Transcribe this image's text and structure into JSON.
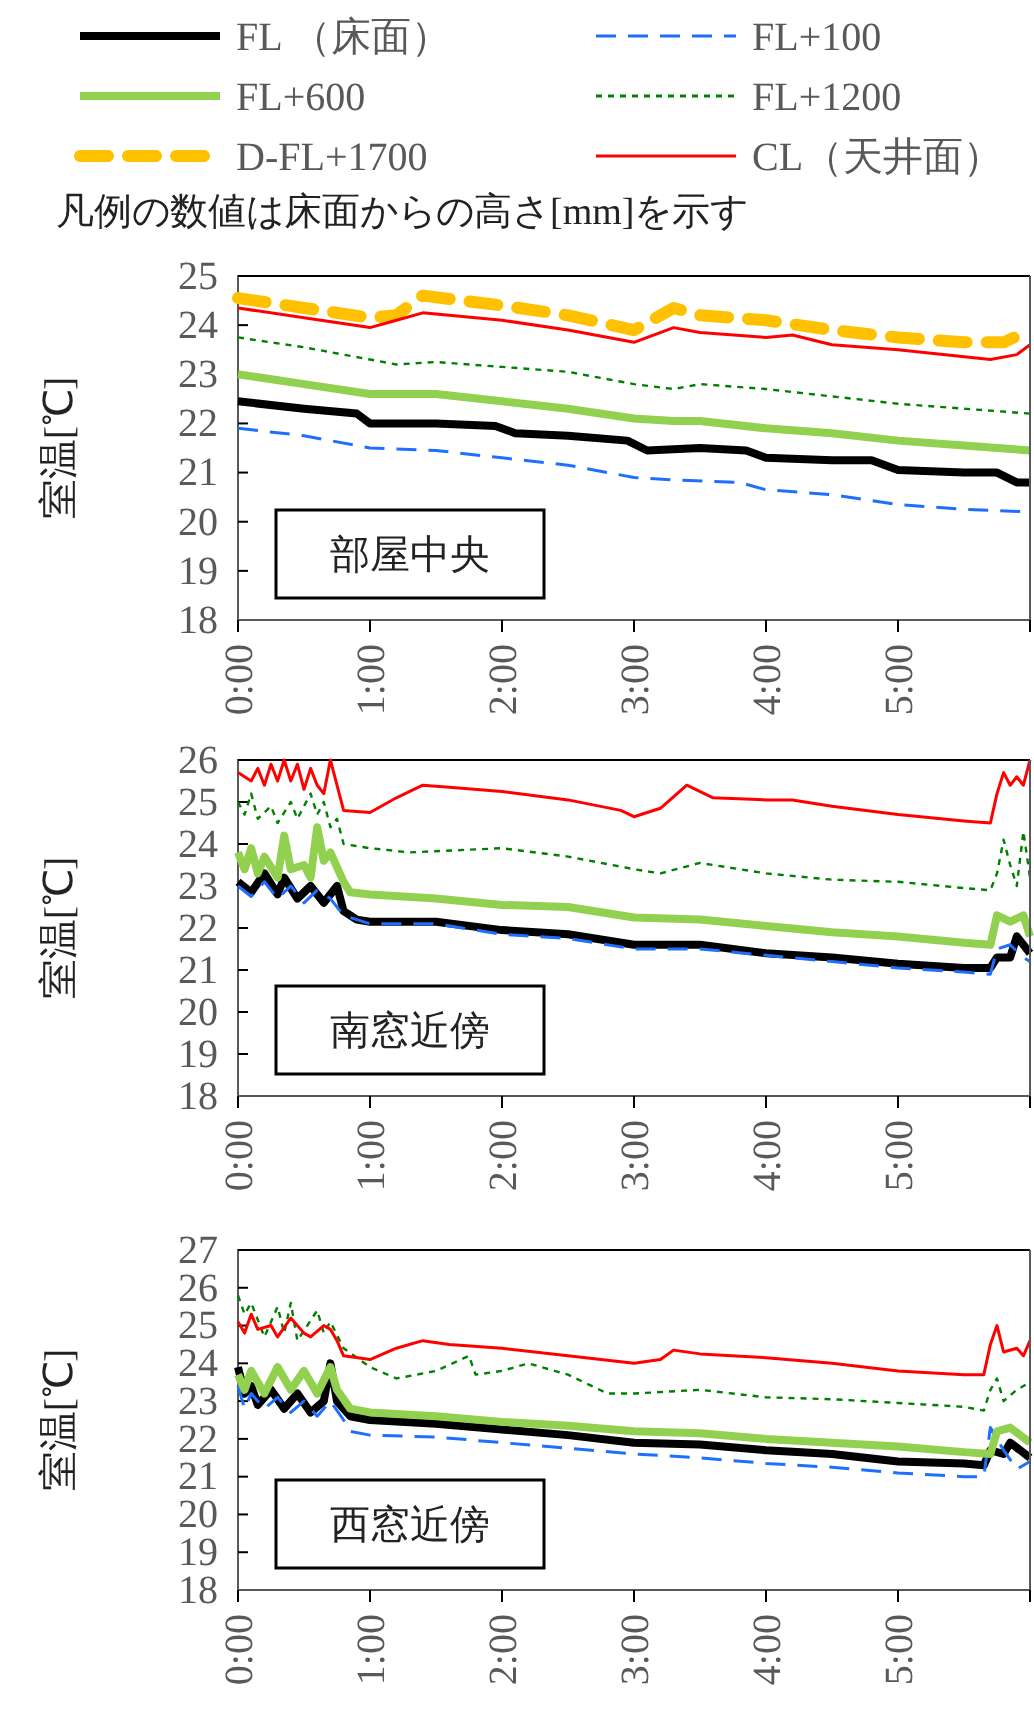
{
  "chart_data": [
    {
      "type": "line",
      "ylabel": "室温[℃]",
      "legend": "top",
      "annotations": [
        "凡例の数値は床面からの高さ[mm]を示す",
        "部屋中央"
      ],
      "xlim": [
        0,
        6
      ],
      "xticks": [
        {
          "value": 0,
          "label": "0:00"
        },
        {
          "value": 1,
          "label": "1:00"
        },
        {
          "value": 2,
          "label": "2:00"
        },
        {
          "value": 3,
          "label": "3:00"
        },
        {
          "value": 4,
          "label": "4:00"
        },
        {
          "value": 5,
          "label": "5:00"
        },
        {
          "value": 6,
          "label": null
        }
      ],
      "ylim": [
        18,
        25
      ],
      "yticks": [
        18,
        19,
        20,
        21,
        22,
        23,
        24,
        25
      ],
      "grid": false,
      "marker": "none",
      "series": [
        {
          "name": "FL （床面）",
          "color": "#000000",
          "line_style": "solid",
          "x": [
            0,
            0.5,
            0.9,
            1,
            1.5,
            1.95,
            2.1,
            2.5,
            2.95,
            3.1,
            3.5,
            3.85,
            4,
            4.5,
            4.8,
            5,
            5.5,
            5.75,
            5.9,
            6
          ],
          "values": [
            22.45,
            22.3,
            22.2,
            22,
            22,
            21.95,
            21.8,
            21.75,
            21.65,
            21.45,
            21.5,
            21.45,
            21.3,
            21.25,
            21.25,
            21.05,
            21,
            21,
            20.8,
            20.8
          ]
        },
        {
          "name": "FL+100",
          "color": "#1f6fff",
          "line_style": "dashed",
          "x": [
            0,
            0.5,
            1,
            1.5,
            2,
            2.5,
            3,
            3.3,
            3.8,
            4,
            4.5,
            5,
            5.5,
            6
          ],
          "values": [
            21.9,
            21.75,
            21.5,
            21.45,
            21.3,
            21.15,
            20.9,
            20.85,
            20.8,
            20.65,
            20.55,
            20.35,
            20.25,
            20.2
          ]
        },
        {
          "name": "FL+600",
          "color": "#92d050",
          "line_style": "solid",
          "x": [
            0,
            0.5,
            1,
            1.5,
            2,
            2.5,
            3,
            3.3,
            3.5,
            4,
            4.5,
            5,
            5.5,
            6
          ],
          "values": [
            23,
            22.8,
            22.6,
            22.6,
            22.45,
            22.3,
            22.1,
            22.05,
            22.05,
            21.9,
            21.8,
            21.65,
            21.55,
            21.45
          ]
        },
        {
          "name": "FL+1200",
          "color": "#008000",
          "line_style": "dotted",
          "x": [
            0,
            0.5,
            1,
            1.2,
            1.5,
            2,
            2.5,
            3,
            3.3,
            3.5,
            4,
            4.5,
            5,
            5.5,
            6
          ],
          "values": [
            23.75,
            23.55,
            23.3,
            23.2,
            23.25,
            23.15,
            23.05,
            22.8,
            22.7,
            22.8,
            22.7,
            22.55,
            22.4,
            22.3,
            22.2
          ]
        },
        {
          "name": "D-FL+1700",
          "color": "#ffc000",
          "line_style": "dashed",
          "x": [
            0,
            0.5,
            1,
            1.2,
            1.4,
            2,
            2.5,
            3,
            3.3,
            3.5,
            4,
            4.5,
            5,
            5.5,
            5.8,
            6
          ],
          "values": [
            24.55,
            24.35,
            24.15,
            24.2,
            24.6,
            24.4,
            24.2,
            23.9,
            24.35,
            24.2,
            24.1,
            23.9,
            23.75,
            23.65,
            23.65,
            23.9
          ]
        },
        {
          "name": "CL（天井面）",
          "color": "#ff0000",
          "line_style": "solid",
          "x": [
            0,
            0.5,
            1,
            1.2,
            1.4,
            2,
            2.5,
            3,
            3.3,
            3.5,
            4,
            4.2,
            4.5,
            5,
            5.7,
            5.9,
            6
          ],
          "values": [
            24.35,
            24.15,
            23.95,
            24.1,
            24.25,
            24.1,
            23.9,
            23.65,
            23.95,
            23.85,
            23.75,
            23.8,
            23.6,
            23.5,
            23.3,
            23.4,
            23.6
          ]
        }
      ]
    },
    {
      "type": "line",
      "ylabel": "室温[℃]",
      "annotations": [
        "南窓近傍"
      ],
      "xlim": [
        0,
        6
      ],
      "xticks": [
        {
          "value": 0,
          "label": "0:00"
        },
        {
          "value": 1,
          "label": "1:00"
        },
        {
          "value": 2,
          "label": "2:00"
        },
        {
          "value": 3,
          "label": "3:00"
        },
        {
          "value": 4,
          "label": "4:00"
        },
        {
          "value": 5,
          "label": "5:00"
        },
        {
          "value": 6,
          "label": null
        }
      ],
      "ylim": [
        18,
        26
      ],
      "yticks": [
        18,
        19,
        20,
        21,
        22,
        23,
        24,
        25,
        26
      ],
      "grid": false,
      "marker": "none",
      "series": [
        {
          "color": "#000000",
          "line_style": "solid",
          "x": [
            0,
            0.1,
            0.2,
            0.3,
            0.35,
            0.45,
            0.55,
            0.65,
            0.75,
            0.8,
            0.9,
            1,
            1.5,
            2,
            2.5,
            3,
            3.5,
            4,
            4.5,
            5,
            5.5,
            5.7,
            5.75,
            5.85,
            5.9,
            6
          ],
          "values": [
            23.1,
            22.85,
            23.3,
            22.8,
            23.2,
            22.7,
            23,
            22.6,
            23,
            22.4,
            22.2,
            22.15,
            22.15,
            21.95,
            21.85,
            21.6,
            21.6,
            21.4,
            21.3,
            21.15,
            21.05,
            21.05,
            21.3,
            21.3,
            21.8,
            21.4
          ]
        },
        {
          "color": "#1f6fff",
          "line_style": "dashed",
          "x": [
            0,
            0.1,
            0.2,
            0.3,
            0.4,
            0.5,
            0.6,
            0.7,
            0.8,
            1,
            1.5,
            2,
            2.5,
            3,
            3.5,
            4,
            4.5,
            5,
            5.5,
            5.7,
            5.75,
            5.85,
            5.95,
            6
          ],
          "values": [
            23,
            22.75,
            23.1,
            22.7,
            23,
            22.6,
            22.9,
            22.7,
            22.3,
            22.1,
            22.1,
            21.85,
            21.75,
            21.5,
            21.5,
            21.35,
            21.2,
            21.05,
            20.95,
            20.9,
            21.5,
            21.6,
            21.3,
            21.2
          ]
        },
        {
          "color": "#92d050",
          "line_style": "solid",
          "x": [
            0,
            0.05,
            0.1,
            0.15,
            0.2,
            0.3,
            0.35,
            0.4,
            0.5,
            0.55,
            0.6,
            0.65,
            0.7,
            0.8,
            0.85,
            1,
            1.5,
            2,
            2.5,
            3,
            3.5,
            4,
            4.5,
            5,
            5.5,
            5.7,
            5.75,
            5.85,
            5.95,
            6
          ],
          "values": [
            23.8,
            23.4,
            23.9,
            23.3,
            23.7,
            23.2,
            24.2,
            23.4,
            23.5,
            23.2,
            24.4,
            23.6,
            23.8,
            23.1,
            22.85,
            22.8,
            22.7,
            22.55,
            22.5,
            22.25,
            22.2,
            22.05,
            21.9,
            21.8,
            21.65,
            21.6,
            22.3,
            22.15,
            22.3,
            21.8
          ]
        },
        {
          "color": "#008000",
          "line_style": "dotted",
          "x": [
            0,
            0.05,
            0.1,
            0.15,
            0.25,
            0.3,
            0.4,
            0.45,
            0.55,
            0.6,
            0.65,
            0.7,
            0.75,
            0.8,
            1,
            1.3,
            2,
            2.5,
            3,
            3.2,
            3.5,
            4,
            4.5,
            5,
            5.5,
            5.7,
            5.75,
            5.8,
            5.85,
            5.9,
            5.95,
            6
          ],
          "values": [
            25,
            24.7,
            25.2,
            24.6,
            24.9,
            24.5,
            25,
            24.6,
            25.2,
            24.7,
            25,
            24.4,
            24.6,
            24,
            23.9,
            23.8,
            23.9,
            23.7,
            23.4,
            23.3,
            23.55,
            23.3,
            23.15,
            23.1,
            22.95,
            22.9,
            23.3,
            24.1,
            23.5,
            23,
            24.3,
            23.2
          ]
        },
        {
          "color": "#ff0000",
          "line_style": "solid",
          "x": [
            0,
            0.1,
            0.15,
            0.2,
            0.25,
            0.3,
            0.35,
            0.4,
            0.45,
            0.5,
            0.55,
            0.6,
            0.65,
            0.7,
            0.75,
            0.8,
            1,
            1.2,
            1.4,
            1.6,
            2,
            2.5,
            2.9,
            3,
            3.2,
            3.4,
            3.6,
            4,
            4.2,
            4.5,
            5,
            5.5,
            5.7,
            5.75,
            5.8,
            5.85,
            5.9,
            5.95,
            6
          ],
          "values": [
            25.7,
            25.5,
            25.8,
            25.4,
            25.9,
            25.5,
            26,
            25.5,
            25.9,
            25.3,
            25.8,
            25.4,
            25.2,
            26,
            25.4,
            24.8,
            24.75,
            25.1,
            25.4,
            25.35,
            25.25,
            25.05,
            24.8,
            24.65,
            24.85,
            25.4,
            25.1,
            25.05,
            25.05,
            24.9,
            24.7,
            24.55,
            24.5,
            25.2,
            25.7,
            25.4,
            25.6,
            25.4,
            26
          ]
        }
      ]
    },
    {
      "type": "line",
      "ylabel": "室温[℃]",
      "annotations": [
        "西窓近傍"
      ],
      "xlim": [
        0,
        6
      ],
      "xticks": [
        {
          "value": 0,
          "label": "0:00"
        },
        {
          "value": 1,
          "label": "1:00"
        },
        {
          "value": 2,
          "label": "2:00"
        },
        {
          "value": 3,
          "label": "3:00"
        },
        {
          "value": 4,
          "label": "4:00"
        },
        {
          "value": 5,
          "label": "5:00"
        },
        {
          "value": 6,
          "label": null
        }
      ],
      "ylim": [
        18,
        27
      ],
      "yticks": [
        18,
        19,
        20,
        21,
        22,
        23,
        24,
        25,
        26,
        27
      ],
      "grid": false,
      "marker": "none",
      "series": [
        {
          "color": "#000000",
          "line_style": "solid",
          "x": [
            0,
            0.05,
            0.1,
            0.15,
            0.25,
            0.35,
            0.45,
            0.55,
            0.65,
            0.7,
            0.75,
            0.85,
            1,
            1.5,
            2,
            2.5,
            3,
            3.5,
            4,
            4.5,
            5,
            5.5,
            5.65,
            5.7,
            5.8,
            5.85,
            6
          ],
          "values": [
            23.9,
            23.2,
            23.4,
            22.9,
            23.3,
            22.8,
            23.2,
            22.7,
            23,
            24,
            23,
            22.6,
            22.5,
            22.4,
            22.25,
            22.1,
            21.9,
            21.85,
            21.7,
            21.6,
            21.4,
            21.35,
            21.3,
            21.7,
            21.6,
            21.9,
            21.5
          ]
        },
        {
          "color": "#1f6fff",
          "line_style": "dashed",
          "x": [
            0,
            0.05,
            0.1,
            0.2,
            0.3,
            0.4,
            0.5,
            0.6,
            0.7,
            0.8,
            0.85,
            1,
            1.5,
            2,
            2.5,
            3,
            3.5,
            4,
            4.5,
            5,
            5.5,
            5.65,
            5.7,
            5.8,
            5.9,
            6
          ],
          "values": [
            23.4,
            22.8,
            23.2,
            22.8,
            23.1,
            22.7,
            23,
            22.6,
            23,
            22.5,
            22.2,
            22.1,
            22.05,
            21.9,
            21.75,
            21.6,
            21.5,
            21.35,
            21.25,
            21.1,
            21,
            21,
            22.3,
            21.7,
            21.2,
            21.4
          ]
        },
        {
          "color": "#92d050",
          "line_style": "solid",
          "x": [
            0,
            0.05,
            0.1,
            0.2,
            0.3,
            0.4,
            0.5,
            0.6,
            0.7,
            0.75,
            0.85,
            1,
            1.5,
            2,
            2.5,
            3,
            3.5,
            4,
            4.5,
            5,
            5.5,
            5.7,
            5.75,
            5.85,
            6
          ],
          "values": [
            23.7,
            23.3,
            23.8,
            23.2,
            23.9,
            23.3,
            23.8,
            23.2,
            23.9,
            23.3,
            22.8,
            22.7,
            22.6,
            22.45,
            22.35,
            22.2,
            22.15,
            22,
            21.9,
            21.8,
            21.65,
            21.6,
            22.2,
            22.3,
            21.9
          ]
        },
        {
          "color": "#008000",
          "line_style": "dotted",
          "x": [
            0,
            0.05,
            0.1,
            0.2,
            0.3,
            0.35,
            0.4,
            0.45,
            0.6,
            0.65,
            0.7,
            0.8,
            1,
            1.2,
            1.5,
            1.75,
            1.8,
            2,
            2.2,
            2.5,
            2.8,
            3,
            3.5,
            4,
            4.5,
            5,
            5.5,
            5.65,
            5.7,
            5.75,
            5.8,
            5.9,
            6
          ],
          "values": [
            25.8,
            25.3,
            25.6,
            24.7,
            25.5,
            24.8,
            25.6,
            24.6,
            25.4,
            24.8,
            25.1,
            24.4,
            23.9,
            23.6,
            23.8,
            24.2,
            23.7,
            23.8,
            24,
            23.7,
            23.2,
            23.2,
            23.3,
            23.1,
            23.05,
            22.95,
            22.85,
            22.75,
            23.3,
            23.6,
            23,
            23.3,
            23.5
          ]
        },
        {
          "color": "#ff0000",
          "line_style": "solid",
          "x": [
            0,
            0.05,
            0.1,
            0.15,
            0.25,
            0.3,
            0.4,
            0.5,
            0.55,
            0.65,
            0.7,
            0.75,
            0.8,
            1,
            1.2,
            1.4,
            1.6,
            2,
            2.5,
            3,
            3.2,
            3.3,
            3.5,
            4,
            4.5,
            5,
            5.5,
            5.65,
            5.7,
            5.75,
            5.8,
            5.9,
            5.95,
            6
          ],
          "values": [
            25.1,
            24.8,
            25.3,
            24.9,
            25,
            24.7,
            25.2,
            24.8,
            24.7,
            25,
            24.9,
            24.6,
            24.2,
            24.1,
            24.4,
            24.6,
            24.5,
            24.4,
            24.2,
            24,
            24.1,
            24.35,
            24.25,
            24.15,
            24,
            23.8,
            23.7,
            23.7,
            24.5,
            25,
            24.3,
            24.4,
            24.2,
            24.6
          ]
        }
      ]
    }
  ]
}
